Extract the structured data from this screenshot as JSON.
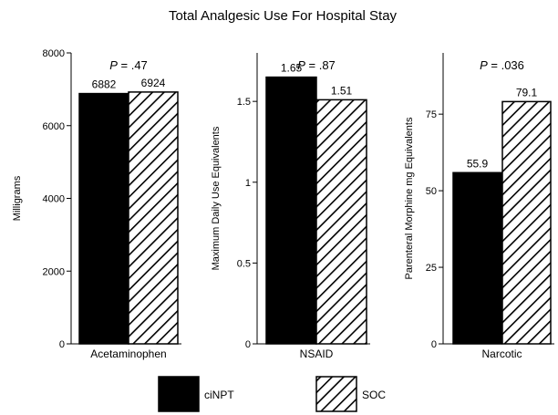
{
  "chart_data": {
    "title": "Total Analgesic Use For Hospital Stay",
    "legend": [
      "ciNPT",
      "SOC"
    ],
    "charts": [
      {
        "type": "bar",
        "ylabel": "Milligrams",
        "ylim": [
          0,
          8000
        ],
        "yticks": [
          "0",
          "2000",
          "4000",
          "6000",
          "8000"
        ],
        "ytick_values": [
          0,
          2000,
          4000,
          6000,
          8000
        ],
        "category": "Acetaminophen",
        "p_prefix": "P",
        "p_value": " = .47",
        "values": [
          6882,
          6924
        ],
        "value_labels": [
          "6882",
          "6924"
        ]
      },
      {
        "type": "bar",
        "ylabel": "Maximum Daily Use Equivalents",
        "ylim": [
          0,
          1.8
        ],
        "yticks": [
          "0",
          "0.5",
          "1",
          "1.5"
        ],
        "ytick_values": [
          0,
          0.5,
          1,
          1.5
        ],
        "category": "NSAID",
        "p_prefix": "P",
        "p_value": " = .87",
        "values": [
          1.65,
          1.51
        ],
        "value_labels": [
          "1.65",
          "1.51"
        ]
      },
      {
        "type": "bar",
        "ylabel": "Parenteral Morphine mg Equivalents",
        "ylim": [
          0,
          95
        ],
        "yticks": [
          "0",
          "25",
          "50",
          "75"
        ],
        "ytick_values": [
          0,
          25,
          50,
          75
        ],
        "category": "Narcotic",
        "p_prefix": "P",
        "p_value": " = .036",
        "values": [
          55.9,
          79.1
        ],
        "value_labels": [
          "55.9",
          "79.1"
        ]
      }
    ]
  }
}
